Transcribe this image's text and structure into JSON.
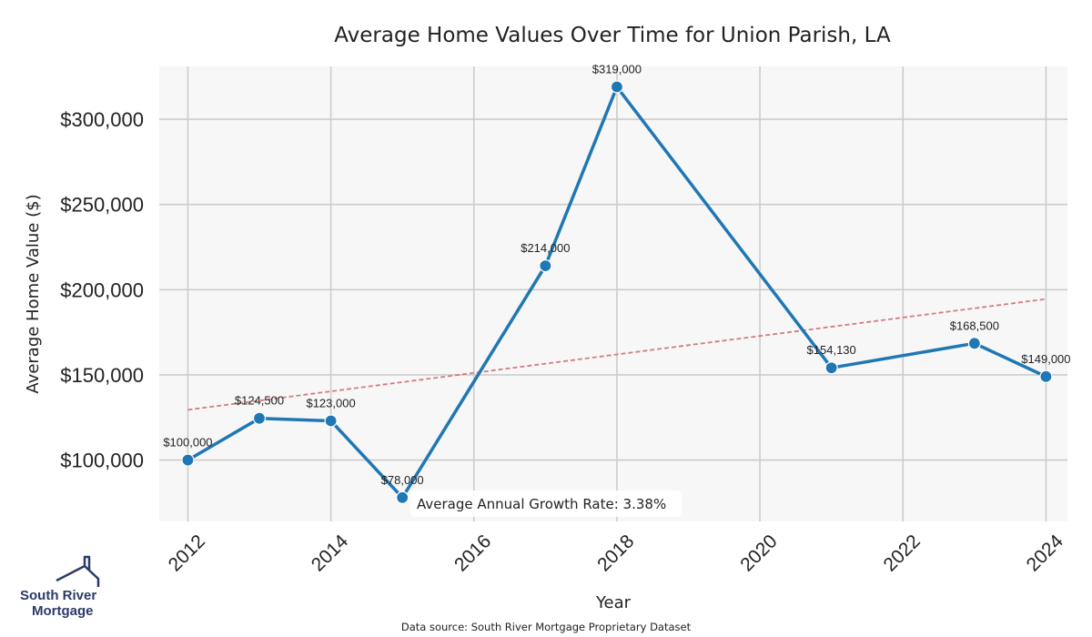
{
  "chart_data": {
    "type": "line",
    "title": "Average Home Values Over Time for Union Parish, LA",
    "xlabel": "Year",
    "ylabel": "Average Home Value ($)",
    "x": [
      2012,
      2013,
      2014,
      2015,
      2017,
      2018,
      2021,
      2023,
      2024
    ],
    "values": [
      100000,
      124500,
      123000,
      78000,
      214000,
      319000,
      154130,
      168500,
      149000
    ],
    "point_labels": [
      "$100,000",
      "$124,500",
      "$123,000",
      "$78,000",
      "$214,000",
      "$319,000",
      "$154,130",
      "$168,500",
      "$149,000"
    ],
    "xlim": [
      2011.6,
      2024.3
    ],
    "ylim": [
      64000,
      331000
    ],
    "x_ticks": [
      2012,
      2014,
      2016,
      2018,
      2020,
      2022,
      2024
    ],
    "x_tick_labels": [
      "2012",
      "2014",
      "2016",
      "2018",
      "2020",
      "2022",
      "2024"
    ],
    "y_ticks": [
      100000,
      150000,
      200000,
      250000,
      300000
    ],
    "y_tick_labels": [
      "$100,000",
      "$150,000",
      "$200,000",
      "$250,000",
      "$300,000"
    ],
    "grid": true,
    "trendline": {
      "start": [
        2012,
        129500
      ],
      "end": [
        2024,
        194500
      ]
    },
    "annotation": "Average Annual Growth Rate: 3.38%",
    "source": "Data source: South River Mortgage Proprietary Dataset",
    "colors": {
      "line": "#1f77b4",
      "trend": "#d47b80",
      "grid": "#cccccc",
      "plot_bg": "#f7f7f7"
    }
  },
  "logo": {
    "line1": "South River",
    "line2": "Mortgage",
    "color": "#2b3a6b"
  }
}
